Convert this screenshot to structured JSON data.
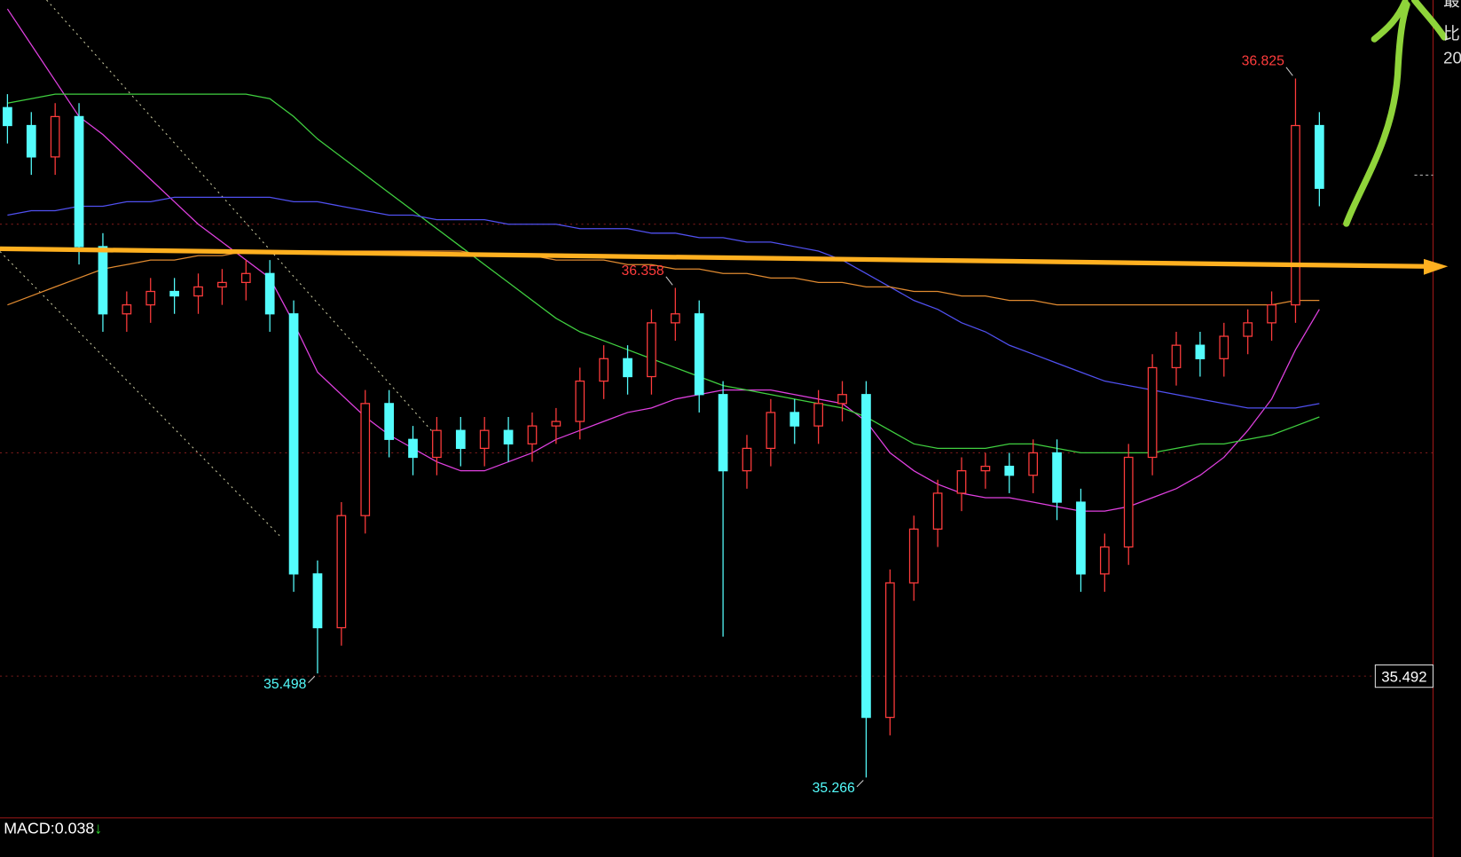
{
  "chart_data": {
    "type": "candlestick",
    "open": [
      36.76,
      36.72,
      36.65,
      36.74,
      36.45,
      36.3,
      36.32,
      36.35,
      36.34,
      36.36,
      36.37,
      36.39,
      36.3,
      35.72,
      35.6,
      35.85,
      36.1,
      36.02,
      35.98,
      36.04,
      36.0,
      36.04,
      36.01,
      36.05,
      36.06,
      36.15,
      36.2,
      36.16,
      36.28,
      36.3,
      36.12,
      35.95,
      36.0,
      36.08,
      36.05,
      36.1,
      36.12,
      35.4,
      35.7,
      35.82,
      35.9,
      35.95,
      35.96,
      35.94,
      35.99,
      35.88,
      35.72,
      35.78,
      35.98,
      36.18,
      36.23,
      36.2,
      36.25,
      36.28,
      36.32,
      36.72
    ],
    "high": [
      36.79,
      36.75,
      36.77,
      36.77,
      36.48,
      36.35,
      36.38,
      36.38,
      36.39,
      36.4,
      36.42,
      36.42,
      36.33,
      35.75,
      35.88,
      36.13,
      36.13,
      36.05,
      36.07,
      36.07,
      36.07,
      36.07,
      36.08,
      36.09,
      36.18,
      36.23,
      36.23,
      36.31,
      36.358,
      36.33,
      36.15,
      36.03,
      36.11,
      36.11,
      36.13,
      36.15,
      36.15,
      35.73,
      35.85,
      35.93,
      35.98,
      35.99,
      35.99,
      36.02,
      36.02,
      35.91,
      35.81,
      36.01,
      36.21,
      36.26,
      36.26,
      36.28,
      36.31,
      36.35,
      36.825,
      36.75
    ],
    "low": [
      36.68,
      36.61,
      36.61,
      36.41,
      36.26,
      36.26,
      36.28,
      36.3,
      36.3,
      36.32,
      36.33,
      36.26,
      35.68,
      35.498,
      35.56,
      35.81,
      35.98,
      35.94,
      35.94,
      35.96,
      35.96,
      35.97,
      35.97,
      36.01,
      36.02,
      36.11,
      36.12,
      36.12,
      36.24,
      36.08,
      35.58,
      35.91,
      35.96,
      36.01,
      36.01,
      36.06,
      35.266,
      35.36,
      35.66,
      35.78,
      35.86,
      35.91,
      35.9,
      35.9,
      35.84,
      35.68,
      35.68,
      35.74,
      35.94,
      36.14,
      36.16,
      36.16,
      36.21,
      36.24,
      36.28,
      36.54
    ],
    "close": [
      36.72,
      36.65,
      36.74,
      36.45,
      36.3,
      36.32,
      36.35,
      36.34,
      36.36,
      36.37,
      36.39,
      36.3,
      35.72,
      35.6,
      35.85,
      36.1,
      36.02,
      35.98,
      36.04,
      36.0,
      36.04,
      36.01,
      36.05,
      36.06,
      36.15,
      36.2,
      36.16,
      36.28,
      36.3,
      36.12,
      35.95,
      36.0,
      36.08,
      36.05,
      36.1,
      36.12,
      35.4,
      35.7,
      35.82,
      35.9,
      35.95,
      35.96,
      35.94,
      35.99,
      35.88,
      35.72,
      35.78,
      35.98,
      36.18,
      36.23,
      36.2,
      36.25,
      36.28,
      36.32,
      36.72,
      36.58
    ],
    "up_color": "#ff3c3c",
    "down_color": "#54fcfc",
    "lines": [
      {
        "color": "#e040e0",
        "values": [
          36.98,
          36.9,
          36.82,
          36.74,
          36.7,
          36.65,
          36.6,
          36.55,
          36.5,
          36.46,
          36.42,
          36.38,
          36.28,
          36.17,
          36.12,
          36.07,
          36.03,
          36.0,
          35.97,
          35.95,
          35.95,
          35.97,
          35.99,
          36.02,
          36.04,
          36.06,
          36.08,
          36.09,
          36.11,
          36.12,
          36.13,
          36.13,
          36.13,
          36.12,
          36.11,
          36.1,
          36.06,
          35.99,
          35.95,
          35.92,
          35.9,
          35.89,
          35.89,
          35.88,
          35.87,
          35.86,
          35.86,
          35.87,
          35.89,
          35.91,
          35.94,
          35.98,
          36.04,
          36.11,
          36.22,
          36.31
        ]
      },
      {
        "color": "#40d040",
        "values": [
          36.77,
          36.78,
          36.79,
          36.79,
          36.79,
          36.79,
          36.79,
          36.79,
          36.79,
          36.79,
          36.79,
          36.78,
          36.74,
          36.69,
          36.65,
          36.61,
          36.57,
          36.53,
          36.49,
          36.45,
          36.41,
          36.37,
          36.33,
          36.29,
          36.26,
          36.24,
          36.22,
          36.2,
          36.18,
          36.16,
          36.14,
          36.13,
          36.12,
          36.11,
          36.1,
          36.09,
          36.07,
          36.04,
          36.01,
          36.0,
          36.0,
          36.0,
          36.01,
          36.01,
          36.0,
          35.99,
          35.99,
          35.99,
          35.99,
          36.0,
          36.01,
          36.01,
          36.02,
          36.03,
          36.05,
          36.07
        ]
      },
      {
        "color": "#5050f0",
        "values": [
          36.52,
          36.53,
          36.53,
          36.54,
          36.54,
          36.55,
          36.55,
          36.56,
          36.56,
          36.56,
          36.56,
          36.56,
          36.55,
          36.55,
          36.54,
          36.53,
          36.52,
          36.52,
          36.51,
          36.51,
          36.51,
          36.5,
          36.5,
          36.5,
          36.49,
          36.49,
          36.49,
          36.48,
          36.48,
          36.47,
          36.47,
          36.46,
          36.46,
          36.45,
          36.44,
          36.42,
          36.39,
          36.36,
          36.33,
          36.31,
          36.28,
          36.26,
          36.23,
          36.21,
          36.19,
          36.17,
          36.15,
          36.14,
          36.13,
          36.12,
          36.11,
          36.1,
          36.09,
          36.09,
          36.09,
          36.1
        ]
      },
      {
        "color": "#e08a30",
        "values": [
          36.32,
          36.34,
          36.36,
          36.38,
          36.4,
          36.41,
          36.42,
          36.42,
          36.43,
          36.43,
          36.44,
          36.44,
          36.44,
          36.44,
          36.44,
          36.44,
          36.44,
          36.44,
          36.44,
          36.44,
          36.43,
          36.43,
          36.43,
          36.42,
          36.42,
          36.42,
          36.41,
          36.41,
          36.4,
          36.4,
          36.39,
          36.39,
          36.38,
          36.38,
          36.37,
          36.37,
          36.36,
          36.36,
          36.35,
          36.35,
          36.34,
          36.34,
          36.33,
          36.33,
          36.32,
          36.32,
          36.32,
          36.32,
          36.32,
          36.32,
          36.32,
          36.32,
          36.32,
          36.32,
          36.33,
          36.33
        ]
      }
    ],
    "ylim": [
      35.18,
      37.0
    ],
    "grid_lines": [
      36.5,
      35.99
    ],
    "price_line": 35.492,
    "macd_label": "MACD:",
    "macd": 0.038,
    "macd_arrow": "↓",
    "corner_texts": [
      "最",
      "比",
      "20"
    ]
  }
}
